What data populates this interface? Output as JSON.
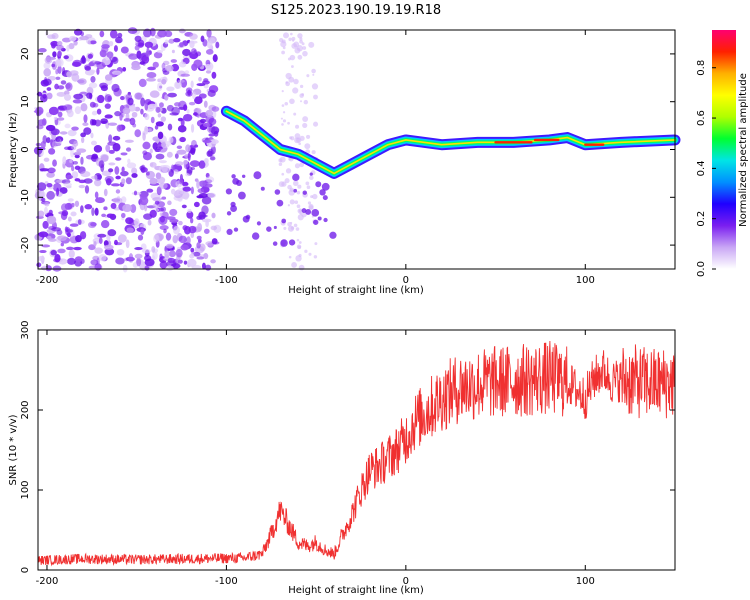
{
  "title": "S125.2023.190.19.19.R18",
  "chart_data": [
    {
      "type": "heatmap",
      "xlabel": "Height of straight line (km)",
      "ylabel": "Frequency (Hz)",
      "xlim": [
        -205,
        150
      ],
      "ylim": [
        -25,
        25
      ],
      "xticks": [
        -200,
        -100,
        0,
        100
      ],
      "yticks": [
        -20,
        -10,
        0,
        10,
        20
      ],
      "colorbar": {
        "label": "Normalized spectral amplitude",
        "range": [
          0,
          0.95
        ],
        "ticks": [
          "0.0",
          "0.2",
          "0.4",
          "0.6",
          "0.8"
        ],
        "colors": [
          "#ffffff",
          "#c9a6f5",
          "#7a1ef0",
          "#1f00ff",
          "#0090ff",
          "#00e5e5",
          "#00ff30",
          "#b0ff00",
          "#ffff00",
          "#ffb000",
          "#ff2000",
          "#ff0070"
        ]
      },
      "ridge": {
        "x": [
          -100,
          -90,
          -80,
          -70,
          -60,
          -50,
          -40,
          -30,
          -20,
          -10,
          0,
          20,
          40,
          60,
          80,
          90,
          100,
          120,
          150
        ],
        "y": [
          8,
          6,
          3,
          0,
          -1,
          -3,
          -5,
          -3,
          -1,
          1,
          2,
          1,
          1.5,
          1.5,
          2,
          2.5,
          1,
          1.5,
          2
        ]
      },
      "noise_region_x": [
        -205,
        -105
      ],
      "noise_columns_x": [
        -70,
        -50
      ]
    },
    {
      "type": "line",
      "xlabel": "Height of straight line (km)",
      "ylabel": "SNR (10 * v/v)",
      "xlim": [
        -205,
        150
      ],
      "ylim": [
        0,
        300
      ],
      "xticks": [
        -200,
        -100,
        0,
        100
      ],
      "yticks": [
        0,
        100,
        200,
        300
      ],
      "color": "#f03030",
      "series": [
        {
          "x": [
            -205,
            -180,
            -150,
            -120,
            -90,
            -80,
            -75,
            -70,
            -65,
            -60,
            -55,
            -50,
            -45,
            -40,
            -35,
            -30,
            -25,
            -20,
            -15,
            -10,
            -5,
            0,
            5,
            10,
            15,
            20,
            30,
            40,
            50,
            60,
            70,
            80,
            90,
            100,
            105,
            110,
            115,
            120,
            130,
            140,
            150
          ],
          "y": [
            12,
            14,
            13,
            14,
            15,
            20,
            45,
            75,
            55,
            35,
            30,
            35,
            25,
            20,
            45,
            70,
            100,
            125,
            130,
            140,
            150,
            165,
            185,
            195,
            205,
            215,
            228,
            232,
            235,
            236,
            238,
            240,
            235,
            215,
            240,
            250,
            235,
            238,
            235,
            233,
            235
          ]
        }
      ]
    }
  ]
}
